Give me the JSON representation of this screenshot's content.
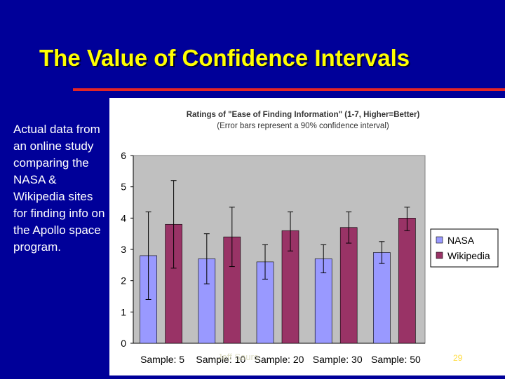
{
  "slide": {
    "title": "The Value of Confidence Intervals",
    "side_text": "Actual data from an online study comparing the NASA & Wikipedia sites for finding info on the Apollo space program.",
    "footer": "Jeff Sauro",
    "page_number": "29"
  },
  "colors": {
    "background": "#000099",
    "title": "#FFFF00",
    "rule": "#E32626",
    "plot_area": "#C0C0C0",
    "nasa": "#9999FF",
    "wikipedia": "#993366"
  },
  "chart_data": {
    "type": "bar",
    "title": "Ratings of \"Ease of Finding Information\" (1-7, Higher=Better)",
    "subtitle": "(Error bars represent a 90% confidence interval)",
    "categories": [
      "Sample: 5",
      "Sample: 10",
      "Sample: 20",
      "Sample: 30",
      "Sample: 50"
    ],
    "series": [
      {
        "name": "NASA",
        "values": [
          2.8,
          2.7,
          2.6,
          2.7,
          2.9
        ],
        "ci_low": [
          1.4,
          1.9,
          2.05,
          2.25,
          2.55
        ],
        "ci_high": [
          4.2,
          3.5,
          3.15,
          3.15,
          3.25
        ]
      },
      {
        "name": "Wikipedia",
        "values": [
          3.8,
          3.4,
          3.6,
          3.7,
          4.0
        ],
        "ci_low": [
          2.4,
          2.45,
          2.95,
          3.2,
          3.6
        ],
        "ci_high": [
          5.2,
          4.35,
          4.2,
          4.2,
          4.35
        ]
      }
    ],
    "yticks": [
      "0",
      "1",
      "2",
      "3",
      "4",
      "5",
      "6"
    ],
    "ylim": [
      0,
      6
    ],
    "legend_position": "right",
    "grid": false
  }
}
